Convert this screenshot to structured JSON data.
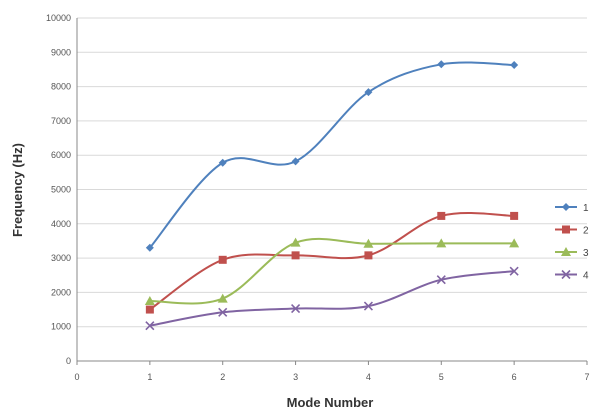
{
  "chart_data": {
    "type": "line",
    "title": "",
    "xlabel": "Mode Number",
    "ylabel": "Frequency (Hz)",
    "xlim": [
      0,
      7
    ],
    "ylim": [
      0,
      10000
    ],
    "x_ticks": [
      0,
      1,
      2,
      3,
      4,
      5,
      6,
      7
    ],
    "y_ticks": [
      0,
      1000,
      2000,
      3000,
      4000,
      5000,
      6000,
      7000,
      8000,
      9000,
      10000
    ],
    "grid": "horizontal",
    "smooth": true,
    "legend_position": "right",
    "x": [
      1,
      2,
      3,
      4,
      5,
      6
    ],
    "series": [
      {
        "name": "1",
        "color": "#4F81BD",
        "marker": "diamond",
        "values": [
          3300,
          5780,
          5820,
          7840,
          8650,
          8630
        ]
      },
      {
        "name": "2",
        "color": "#C0504D",
        "marker": "square",
        "values": [
          1500,
          2950,
          3080,
          3080,
          4230,
          4230
        ]
      },
      {
        "name": "3",
        "color": "#9BBB59",
        "marker": "triangle",
        "values": [
          1750,
          1820,
          3450,
          3420,
          3430,
          3430
        ]
      },
      {
        "name": "4",
        "color": "#8064A2",
        "marker": "x",
        "values": [
          1030,
          1420,
          1530,
          1600,
          2370,
          2620
        ]
      }
    ]
  }
}
